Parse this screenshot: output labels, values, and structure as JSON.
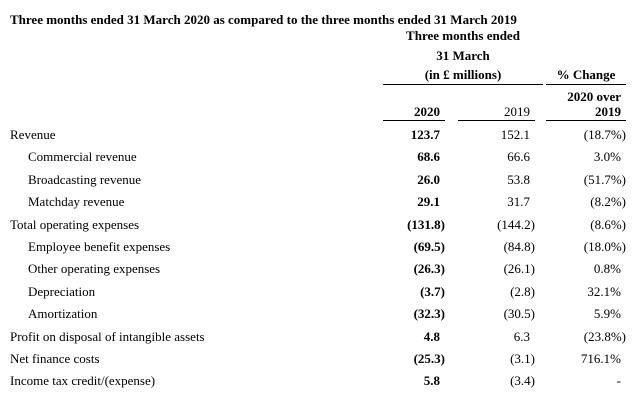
{
  "page": {
    "title": "Three months ended 31 March 2020 as compared to the three months ended 31 March 2019"
  },
  "header": {
    "group_line1": "Three months ended",
    "group_line2": "31 March",
    "group_line3": "(in £ millions)",
    "pct_label": "% Change",
    "pct_sub": "2020 over",
    "col_2020": "2020",
    "col_2019": "2019",
    "pct_col_year": "2019"
  },
  "table": {
    "rows": [
      {
        "label": "Revenue",
        "indent": false,
        "v2020": "123.7",
        "v2019": "152.1",
        "pct": "(18.7%)"
      },
      {
        "label": "Commercial revenue",
        "indent": true,
        "v2020": "68.6",
        "v2019": "66.6",
        "pct": "3.0%"
      },
      {
        "label": "Broadcasting revenue",
        "indent": true,
        "v2020": "26.0",
        "v2019": "53.8",
        "pct": "(51.7%)"
      },
      {
        "label": "Matchday revenue",
        "indent": true,
        "v2020": "29.1",
        "v2019": "31.7",
        "pct": "(8.2%)"
      },
      {
        "label": "Total operating expenses",
        "indent": false,
        "v2020": "(131.8)",
        "v2019": "(144.2)",
        "pct": "(8.6%)"
      },
      {
        "label": "Employee benefit expenses",
        "indent": true,
        "v2020": "(69.5)",
        "v2019": "(84.8)",
        "pct": "(18.0%)"
      },
      {
        "label": "Other operating expenses",
        "indent": true,
        "v2020": "(26.3)",
        "v2019": "(26.1)",
        "pct": "0.8%"
      },
      {
        "label": "Depreciation",
        "indent": true,
        "v2020": "(3.7)",
        "v2019": "(2.8)",
        "pct": "32.1%"
      },
      {
        "label": "Amortization",
        "indent": true,
        "v2020": "(32.3)",
        "v2019": "(30.5)",
        "pct": "5.9%"
      },
      {
        "label": "Profit on disposal of intangible assets",
        "indent": false,
        "v2020": "4.8",
        "v2019": "6.3",
        "pct": "(23.8%)"
      },
      {
        "label": "Net finance costs",
        "indent": false,
        "v2020": "(25.3)",
        "v2019": "(3.1)",
        "pct": "716.1%"
      },
      {
        "label": "Income tax credit/(expense)",
        "indent": false,
        "v2020": "5.8",
        "v2019": "(3.4)",
        "pct": "-"
      }
    ]
  },
  "colors": {
    "text": "#000000",
    "background": "#ffffff",
    "rule": "#000000"
  }
}
